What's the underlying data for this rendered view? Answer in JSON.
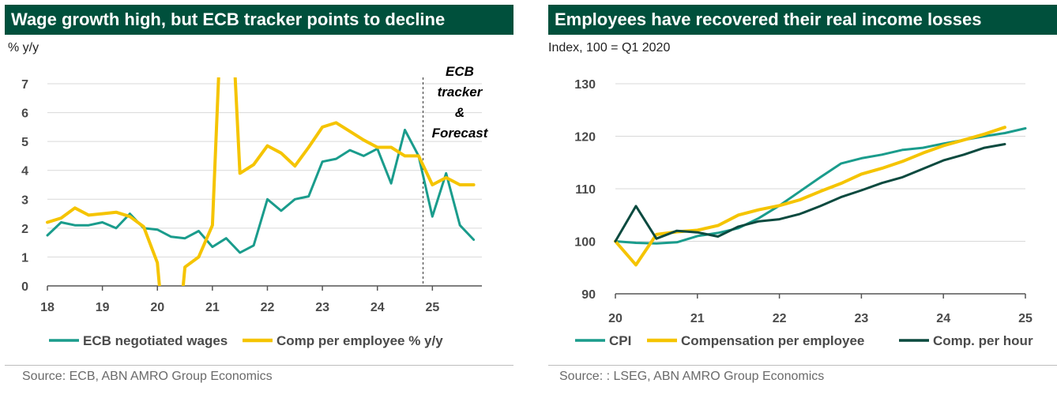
{
  "colors": {
    "title_bg": "#00503C",
    "teal": "#1A9C8C",
    "yellow": "#F5C400",
    "dark_green": "#0B4A3F",
    "grid": "#d9d9d9"
  },
  "left": {
    "title": "Wage growth high, but ECB tracker points to decline",
    "unit": "% y/y",
    "source": "Source: ECB, ABN AMRO Group Economics",
    "annotation": [
      "ECB",
      "tracker",
      "&",
      "Forecast"
    ]
  },
  "right": {
    "title": "Employees have recovered their real income losses",
    "unit": "Index, 100 = Q1 2020",
    "source": "Source: : LSEG, ABN AMRO Group Economics"
  },
  "chart_data": [
    {
      "type": "line",
      "title": "Wage growth high, but ECB tracker points to decline",
      "ylabel": "% y/y",
      "xlim": [
        2018,
        2025.9
      ],
      "ylim": [
        0,
        7
      ],
      "x_ticks": [
        "18",
        "19",
        "20",
        "21",
        "22",
        "23",
        "24",
        "25"
      ],
      "y_ticks": [
        "0",
        "1",
        "2",
        "3",
        "4",
        "5",
        "6",
        "7"
      ],
      "forecast_start": 2024.83,
      "grid": "horizontal",
      "legend": "bottom",
      "series": [
        {
          "name": "ECB negotiated wages",
          "color": "#1A9C8C",
          "x": [
            2018.0,
            2018.25,
            2018.5,
            2018.75,
            2019.0,
            2019.25,
            2019.5,
            2019.75,
            2020.0,
            2020.25,
            2020.5,
            2020.75,
            2021.0,
            2021.25,
            2021.5,
            2021.75,
            2022.0,
            2022.25,
            2022.5,
            2022.75,
            2023.0,
            2023.25,
            2023.5,
            2023.75,
            2024.0,
            2024.25,
            2024.5,
            2024.75,
            2025.0,
            2025.25,
            2025.5,
            2025.75
          ],
          "values": [
            1.75,
            2.2,
            2.1,
            2.1,
            2.2,
            2.0,
            2.5,
            2.0,
            1.95,
            1.7,
            1.65,
            1.9,
            1.35,
            1.65,
            1.15,
            1.4,
            3.0,
            2.6,
            3.0,
            3.1,
            4.3,
            4.4,
            4.7,
            4.5,
            4.75,
            3.55,
            5.4,
            4.5,
            2.4,
            3.9,
            2.1,
            1.6
          ]
        },
        {
          "name": "Comp per employee % y/y",
          "color": "#F5C400",
          "x": [
            2018.0,
            2018.25,
            2018.5,
            2018.75,
            2019.0,
            2019.25,
            2019.5,
            2019.75,
            2020.0,
            2020.25,
            2020.5,
            2020.75,
            2021.0,
            2021.25,
            2021.5,
            2021.75,
            2022.0,
            2022.25,
            2022.5,
            2022.75,
            2023.0,
            2023.25,
            2023.5,
            2023.75,
            2024.0,
            2024.25,
            2024.5,
            2024.75,
            2025.0,
            2025.25,
            2025.5,
            2025.75
          ],
          "values": [
            2.2,
            2.35,
            2.7,
            2.45,
            2.5,
            2.55,
            2.4,
            2.05,
            0.8,
            -4.5,
            0.65,
            1.0,
            2.1,
            13.5,
            3.9,
            4.2,
            4.85,
            4.6,
            4.15,
            4.8,
            5.5,
            5.65,
            5.35,
            5.05,
            4.8,
            4.8,
            4.5,
            4.5,
            3.5,
            3.75,
            3.5,
            3.5
          ]
        }
      ]
    },
    {
      "type": "line",
      "title": "Employees have recovered their real income losses",
      "ylabel": "Index, 100 = Q1 2020",
      "xlim": [
        2020,
        2025
      ],
      "ylim": [
        90,
        130
      ],
      "x_ticks": [
        "20",
        "21",
        "22",
        "23",
        "24",
        "25"
      ],
      "y_ticks": [
        "90",
        "100",
        "110",
        "120",
        "130"
      ],
      "grid": "horizontal",
      "legend": "bottom",
      "series": [
        {
          "name": "CPI",
          "color": "#1A9C8C",
          "x": [
            2020.0,
            2020.25,
            2020.5,
            2020.75,
            2021.0,
            2021.25,
            2021.5,
            2021.75,
            2022.0,
            2022.25,
            2022.5,
            2022.75,
            2023.0,
            2023.25,
            2023.5,
            2023.75,
            2024.0,
            2024.25,
            2024.5,
            2024.75,
            2025.0
          ],
          "values": [
            100.0,
            99.7,
            99.6,
            99.8,
            101.0,
            101.6,
            102.5,
            104.4,
            106.8,
            109.5,
            112.2,
            114.8,
            115.8,
            116.5,
            117.4,
            117.8,
            118.6,
            119.3,
            120.0,
            120.6,
            121.5
          ]
        },
        {
          "name": "Compensation per employee",
          "color": "#F5C400",
          "x": [
            2020.0,
            2020.25,
            2020.5,
            2020.75,
            2021.0,
            2021.25,
            2021.5,
            2021.75,
            2022.0,
            2022.25,
            2022.5,
            2022.75,
            2023.0,
            2023.25,
            2023.5,
            2023.75,
            2024.0,
            2024.25,
            2024.5,
            2024.75
          ],
          "values": [
            100.0,
            95.5,
            101.3,
            101.8,
            102.1,
            103.0,
            105.0,
            106.0,
            106.8,
            107.9,
            109.5,
            111.0,
            112.8,
            113.9,
            115.2,
            116.8,
            118.2,
            119.3,
            120.4,
            121.7
          ]
        },
        {
          "name": "Comp. per hour",
          "color": "#0B4A3F",
          "x": [
            2020.0,
            2020.25,
            2020.5,
            2020.75,
            2021.0,
            2021.25,
            2021.5,
            2021.75,
            2022.0,
            2022.25,
            2022.5,
            2022.75,
            2023.0,
            2023.25,
            2023.5,
            2023.75,
            2024.0,
            2024.25,
            2024.5,
            2024.75
          ],
          "values": [
            100.0,
            106.7,
            100.5,
            102.0,
            101.7,
            100.9,
            102.8,
            103.8,
            104.2,
            105.2,
            106.7,
            108.4,
            109.7,
            111.1,
            112.2,
            113.8,
            115.4,
            116.5,
            117.8,
            118.5
          ]
        }
      ]
    }
  ]
}
